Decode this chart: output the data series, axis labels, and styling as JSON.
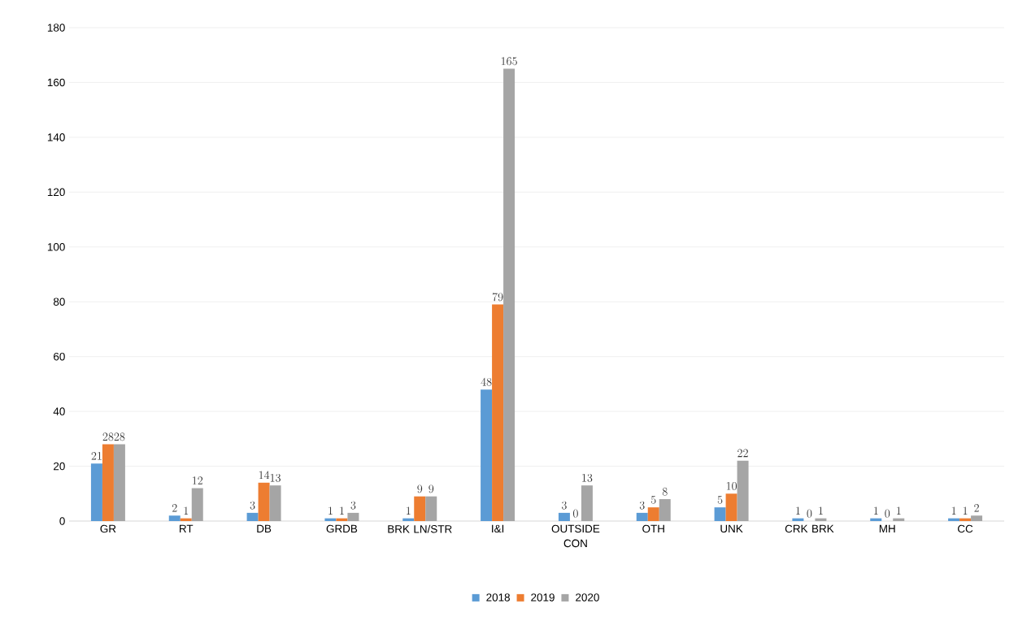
{
  "chart_data": {
    "type": "bar",
    "categories": [
      "GR",
      "RT",
      "DB",
      "GRDB",
      "BRK LN/STR",
      "I&I",
      "OUTSIDE CON",
      "OTH",
      "UNK",
      "CRK BRK",
      "MH",
      "CC"
    ],
    "series": [
      {
        "name": "2018",
        "color": "#5b9bd5",
        "values": [
          21,
          2,
          3,
          1,
          1,
          48,
          3,
          3,
          5,
          1,
          1,
          1
        ]
      },
      {
        "name": "2019",
        "color": "#ed7d31",
        "values": [
          28,
          1,
          14,
          1,
          9,
          79,
          0,
          5,
          10,
          0,
          0,
          1
        ]
      },
      {
        "name": "2020",
        "color": "#a5a5a5",
        "values": [
          28,
          12,
          13,
          3,
          9,
          165,
          13,
          8,
          22,
          1,
          1,
          2
        ]
      }
    ],
    "ylim": [
      0,
      180
    ],
    "yticks": [
      0,
      20,
      40,
      60,
      80,
      100,
      120,
      140,
      160,
      180
    ],
    "grid": "y",
    "legend": "bottom",
    "data_labels": true
  }
}
